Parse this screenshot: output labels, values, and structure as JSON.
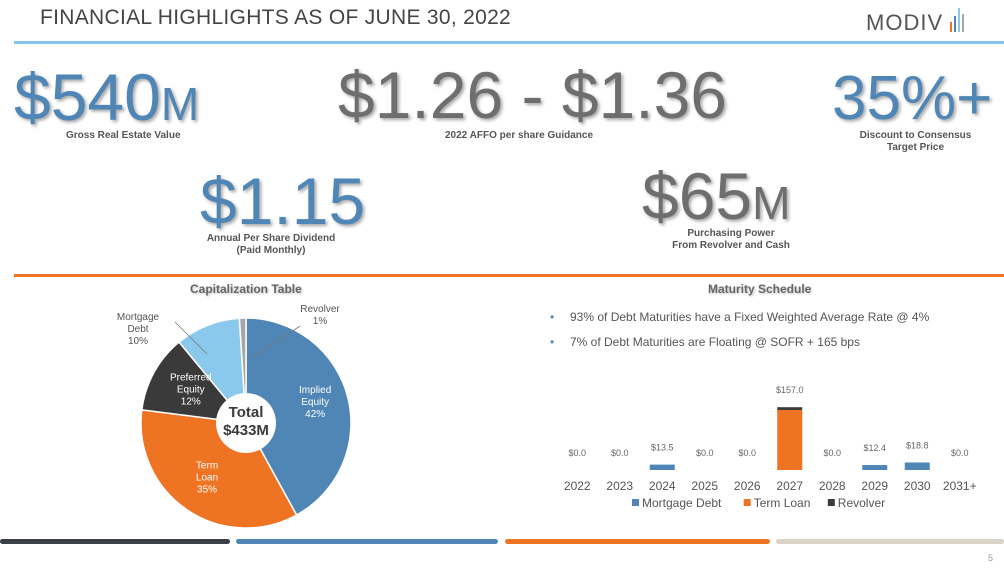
{
  "header": {
    "title": "FINANCIAL HIGHLIGHTS AS OF JUNE 30, 2022",
    "logo_text": "MODIV",
    "page_number": "5"
  },
  "metrics": {
    "m1": {
      "value": "$540",
      "unit": "M",
      "caption": "Gross Real Estate Value"
    },
    "m2": {
      "value": "$1.26 - $1.36",
      "caption": "2022 AFFO per share Guidance"
    },
    "m3": {
      "value": "35%+",
      "caption_l1": "Discount to Consensus",
      "caption_l2": "Target Price"
    },
    "m4": {
      "value": "$1.15",
      "caption_l1": "Annual Per Share Dividend",
      "caption_l2": "(Paid Monthly)"
    },
    "m5": {
      "value": "$65",
      "unit": "M",
      "caption_l1": "Purchasing Power",
      "caption_l2": "From Revolver and Cash"
    }
  },
  "capitalization": {
    "title": "Capitalization Table",
    "center_l1": "Total",
    "center_l2": "$433M"
  },
  "maturity": {
    "title": "Maturity Schedule",
    "bullets": [
      "93% of Debt Maturities have a Fixed Weighted Average Rate @ 4%",
      "7% of Debt Maturities are Floating @ SOFR + 165 bps"
    ]
  },
  "colors": {
    "blue": "#4f86b5",
    "light_blue": "#8ac9ec",
    "orange": "#ee7423",
    "dark": "#3a3a3a",
    "gray_rule": "#d9d4c7"
  },
  "chart_data": [
    {
      "type": "pie",
      "title": "Capitalization Table",
      "labels": [
        "Implied Equity",
        "Term Loan",
        "Preferred Equity",
        "Mortgage Debt",
        "Revolver"
      ],
      "display_labels": [
        [
          "Implied",
          "Equity",
          "42%"
        ],
        [
          "Term",
          "Loan",
          "35%"
        ],
        [
          "Preferred",
          "Equity",
          "12%"
        ],
        [
          "Mortgage",
          "Debt",
          "10%"
        ],
        [
          "Revolver",
          "1%"
        ]
      ],
      "values": [
        42,
        35,
        12,
        10,
        1
      ],
      "colors": [
        "#4f86b5",
        "#ee7423",
        "#3a3a3a",
        "#8ac9ec",
        "#a6a6a6"
      ],
      "donut": true
    },
    {
      "type": "bar",
      "title": "Maturity Schedule",
      "stacked": true,
      "categories": [
        "2022",
        "2023",
        "2024",
        "2025",
        "2026",
        "2027",
        "2028",
        "2029",
        "2030",
        "2031+"
      ],
      "series": [
        {
          "name": "Mortgage Debt",
          "color": "#4f86b5",
          "values": [
            0,
            0,
            13.5,
            0,
            0,
            0,
            0,
            12.4,
            18.8,
            0
          ]
        },
        {
          "name": "Term Loan",
          "color": "#ee7423",
          "values": [
            0,
            0,
            0,
            0,
            0,
            150,
            0,
            0,
            0,
            0
          ]
        },
        {
          "name": "Revolver",
          "color": "#3a3a3a",
          "values": [
            0,
            0,
            0,
            0,
            0,
            7,
            0,
            0,
            0,
            0
          ]
        }
      ],
      "data_labels": [
        "$0.0",
        "$0.0",
        "$13.5",
        "$0.0",
        "$0.0",
        "$157.0",
        "$0.0",
        "$12.4",
        "$18.8",
        "$0.0"
      ],
      "ylim": [
        0,
        160
      ],
      "legend_position": "bottom",
      "grid": false
    }
  ]
}
